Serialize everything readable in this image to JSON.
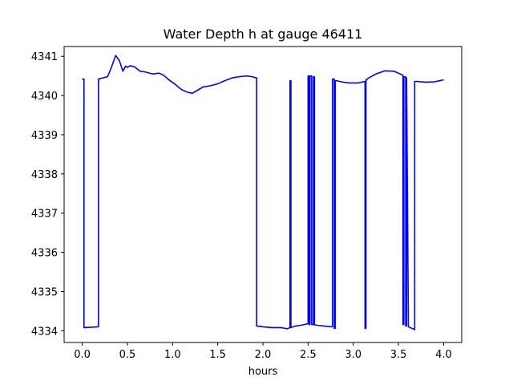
{
  "chart_data": {
    "type": "line",
    "title": "Water Depth h at gauge 46411",
    "xlabel": "hours",
    "ylabel": "",
    "xlim": [
      -0.2,
      4.2
    ],
    "ylim": [
      4333.7,
      4341.25
    ],
    "x_ticks": [
      0.0,
      0.5,
      1.0,
      1.5,
      2.0,
      2.5,
      3.0,
      3.5,
      4.0
    ],
    "x_tick_labels": [
      "0.0",
      "0.5",
      "1.0",
      "1.5",
      "2.0",
      "2.5",
      "3.0",
      "3.5",
      "4.0"
    ],
    "y_ticks": [
      4334,
      4335,
      4336,
      4337,
      4338,
      4339,
      4340,
      4341
    ],
    "y_tick_labels": [
      "4334",
      "4335",
      "4336",
      "4337",
      "4338",
      "4339",
      "4340",
      "4341"
    ],
    "grid": false,
    "legend": "none",
    "series": [
      {
        "color": "#0000ff",
        "x": [
          0.0,
          0.02,
          0.02,
          0.18,
          0.18,
          0.28,
          0.32,
          0.37,
          0.41,
          0.45,
          0.48,
          0.5,
          0.53,
          0.58,
          0.64,
          0.7,
          0.78,
          0.85,
          0.9,
          0.96,
          1.02,
          1.1,
          1.17,
          1.22,
          1.28,
          1.34,
          1.42,
          1.5,
          1.58,
          1.66,
          1.74,
          1.82,
          1.88,
          1.93,
          1.93,
          2.0,
          2.1,
          2.2,
          2.27,
          2.3,
          2.3,
          2.31,
          2.31,
          2.36,
          2.42,
          2.5,
          2.5,
          2.51,
          2.51,
          2.52,
          2.52,
          2.54,
          2.54,
          2.56,
          2.56,
          2.57,
          2.57,
          2.6,
          2.75,
          2.77,
          2.77,
          2.79,
          2.79,
          2.8,
          2.8,
          2.81,
          2.81,
          2.87,
          2.95,
          3.05,
          3.13,
          3.13,
          3.14,
          3.14,
          3.15,
          3.15,
          3.25,
          3.35,
          3.45,
          3.55,
          3.55,
          3.56,
          3.56,
          3.58,
          3.58,
          3.59,
          3.59,
          3.61,
          3.68,
          3.68,
          3.7,
          3.8,
          3.9,
          4.0
        ],
        "y": [
          4340.42,
          4340.42,
          4334.08,
          4334.1,
          4340.42,
          4340.48,
          4340.7,
          4341.02,
          4340.9,
          4340.62,
          4340.75,
          4340.72,
          4340.76,
          4340.73,
          4340.62,
          4340.6,
          4340.55,
          4340.57,
          4340.52,
          4340.4,
          4340.3,
          4340.15,
          4340.08,
          4340.06,
          4340.14,
          4340.22,
          4340.25,
          4340.3,
          4340.38,
          4340.45,
          4340.48,
          4340.5,
          4340.48,
          4340.45,
          4334.12,
          4334.1,
          4334.08,
          4334.08,
          4334.05,
          4334.08,
          4340.38,
          4340.38,
          4334.08,
          4334.12,
          4334.14,
          4334.18,
          4340.5,
          4340.5,
          4334.16,
          4334.16,
          4340.5,
          4340.5,
          4334.16,
          4334.16,
          4340.48,
          4340.48,
          4334.15,
          4334.14,
          4334.1,
          4334.1,
          4340.42,
          4340.42,
          4334.06,
          4334.06,
          4340.38,
          4340.38,
          4340.38,
          4340.35,
          4340.32,
          4340.32,
          4340.36,
          4334.06,
          4334.06,
          4340.4,
          4340.4,
          4340.42,
          4340.55,
          4340.63,
          4340.62,
          4340.52,
          4334.16,
          4334.16,
          4340.48,
          4340.48,
          4334.12,
          4334.12,
          4340.45,
          4334.1,
          4334.03,
          4340.36,
          4340.36,
          4340.34,
          4340.35,
          4340.4
        ]
      }
    ]
  }
}
